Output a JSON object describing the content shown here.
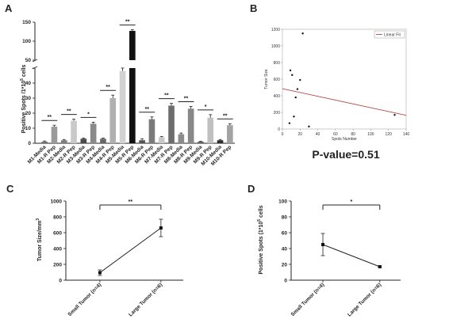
{
  "panels": {
    "A": "A",
    "B": "B",
    "C": "C",
    "D": "D"
  },
  "chart_data": [
    {
      "panel": "A",
      "type": "bar",
      "ylabel": "Positive Spots /1*10^5 cells",
      "ylim": [
        0,
        150
      ],
      "yticks": [
        "0",
        "10",
        "20",
        "30",
        "40",
        "50",
        "100",
        "150"
      ],
      "categories": [
        "M1-Media",
        "M1-R Pep",
        "M2-Media",
        "M2-R Pep",
        "M3-Media",
        "M3-R Pep",
        "M4-Media",
        "M4-R Pep",
        "M5-Media",
        "M5-R Pep",
        "M6-Media",
        "M6-R Pep",
        "M7-Media",
        "M7-R Pep",
        "M8-Media",
        "M8-R Pep",
        "M9-Media",
        "M9-R Pep",
        "M10-Media",
        "M10-R Pep"
      ],
      "values": [
        1,
        11,
        2,
        15,
        3,
        13,
        3,
        30,
        48,
        127,
        2,
        16,
        4,
        25,
        6,
        23,
        1,
        17,
        2,
        12
      ],
      "errors": [
        0.5,
        1,
        0.5,
        1,
        0.5,
        1,
        0.5,
        2,
        2,
        3,
        1,
        1.5,
        0.5,
        1.5,
        0.8,
        1.5,
        0.3,
        2,
        0.5,
        1
      ],
      "colors": [
        "#6e6e6e",
        "#9a9a9a",
        "#7d7d7d",
        "#c9c9c9",
        "#4a4a4a",
        "#8a8a8a",
        "#666666",
        "#b0b0b0",
        "#d2d2d2",
        "#111111",
        "#555555",
        "#7a7a7a",
        "#c8c8c8",
        "#6d6d6d",
        "#8c8c8c",
        "#888888",
        "#5e5e5e",
        "#c0c0c0",
        "#2e2e2e",
        "#a3a3a3"
      ],
      "significance": [
        "**",
        "**",
        "*",
        "**",
        "**",
        "**",
        "**",
        "**",
        "*",
        "**"
      ]
    },
    {
      "panel": "B",
      "type": "scatter",
      "xlabel": "Spots Number",
      "ylabel": "Tumor Size",
      "xlim": [
        0,
        140
      ],
      "ylim": [
        0,
        1200
      ],
      "xticks": [
        "0",
        "20",
        "40",
        "60",
        "80",
        "100",
        "120",
        "140"
      ],
      "yticks": [
        "0",
        "200",
        "400",
        "600",
        "800",
        "1000",
        "1200"
      ],
      "points": [
        [
          9,
          705
        ],
        [
          11,
          650
        ],
        [
          13,
          150
        ],
        [
          15,
          380
        ],
        [
          17,
          480
        ],
        [
          20,
          590
        ],
        [
          23,
          1150
        ],
        [
          30,
          30
        ],
        [
          8,
          70
        ],
        [
          127,
          170
        ]
      ],
      "fit_line": {
        "label": "Linear Fit",
        "x": [
          0,
          140
        ],
        "y": [
          485,
          165
        ]
      },
      "pvalue": "P-value=0.51"
    },
    {
      "panel": "C",
      "type": "line",
      "ylabel": "Tumor Size/mm3",
      "ylim": [
        0,
        1000
      ],
      "yticks": [
        "0",
        "200",
        "400",
        "600",
        "800",
        "1000"
      ],
      "categories": [
        "Small Tumor (n=4)",
        "Large Tumor (n=6)"
      ],
      "values": [
        95,
        660
      ],
      "errors": [
        35,
        110
      ],
      "significance": "**"
    },
    {
      "panel": "D",
      "type": "line",
      "ylabel": "Positive Spots (1*10^5 cells",
      "ylim": [
        0,
        100
      ],
      "yticks": [
        "0",
        "20",
        "40",
        "60",
        "80",
        "100"
      ],
      "categories": [
        "Small Tumor (n=4)",
        "Large Tumor (n=6)"
      ],
      "values": [
        45,
        17
      ],
      "errors": [
        14,
        1
      ],
      "significance": "*"
    }
  ]
}
